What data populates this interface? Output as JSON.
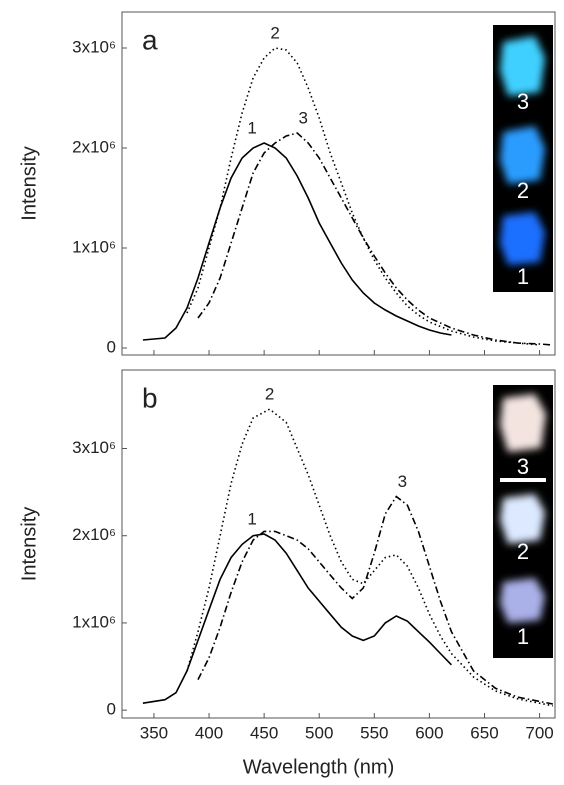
{
  "chart_data": [
    {
      "type": "line",
      "panel_label": "a",
      "ylabel": "Intensity",
      "xlim": [
        321,
        714
      ],
      "xticks": [
        350,
        400,
        450,
        500,
        550,
        600,
        650,
        700
      ],
      "ylim": [
        -70000,
        3360000
      ],
      "yticks": [
        0,
        {
          "value": 1000000,
          "label": "1x10⁶"
        },
        {
          "value": 2000000,
          "label": "2x10⁶"
        },
        {
          "value": 3000000,
          "label": "3x10⁶"
        }
      ],
      "inset_labels": [
        "3",
        "2",
        "1"
      ],
      "series": [
        {
          "name": "1",
          "color": "#000000",
          "style": "solid",
          "x": [
            340,
            360,
            370,
            380,
            390,
            400,
            410,
            420,
            430,
            440,
            450,
            460,
            470,
            480,
            490,
            500,
            510,
            520,
            530,
            540,
            550,
            560,
            570,
            580,
            590,
            600,
            610,
            620
          ],
          "values": [
            80000,
            100000,
            200000,
            400000,
            700000,
            1050000,
            1400000,
            1700000,
            1900000,
            2000000,
            2050000,
            2000000,
            1900000,
            1720000,
            1500000,
            1250000,
            1050000,
            850000,
            680000,
            550000,
            450000,
            380000,
            320000,
            270000,
            220000,
            180000,
            150000,
            130000
          ]
        },
        {
          "name": "2",
          "color": "#000000",
          "style": "dotted",
          "x": [
            380,
            390,
            400,
            410,
            420,
            430,
            440,
            450,
            460,
            470,
            480,
            490,
            500,
            510,
            520,
            530,
            540,
            550,
            560,
            570,
            580,
            590,
            600,
            620,
            640,
            660,
            680,
            700
          ],
          "values": [
            350000,
            600000,
            1000000,
            1400000,
            1900000,
            2350000,
            2700000,
            2900000,
            3000000,
            2980000,
            2850000,
            2600000,
            2300000,
            1950000,
            1650000,
            1350000,
            1100000,
            880000,
            700000,
            550000,
            420000,
            330000,
            260000,
            170000,
            110000,
            70000,
            50000,
            30000
          ]
        },
        {
          "name": "3",
          "color": "#000000",
          "style": "dashdot",
          "x": [
            390,
            400,
            410,
            420,
            430,
            440,
            450,
            460,
            470,
            480,
            490,
            500,
            510,
            520,
            530,
            540,
            550,
            560,
            570,
            580,
            590,
            600,
            620,
            640,
            660,
            680,
            700,
            712
          ],
          "values": [
            300000,
            450000,
            700000,
            1050000,
            1400000,
            1750000,
            1950000,
            2050000,
            2120000,
            2150000,
            2050000,
            1900000,
            1700000,
            1500000,
            1300000,
            1100000,
            920000,
            750000,
            600000,
            480000,
            380000,
            300000,
            200000,
            130000,
            80000,
            50000,
            40000,
            30000
          ]
        }
      ]
    },
    {
      "type": "line",
      "panel_label": "b",
      "xlabel": "Wavelength (nm)",
      "ylabel": "Intensity",
      "xlim": [
        321,
        714
      ],
      "xticks": [
        350,
        400,
        450,
        500,
        550,
        600,
        650,
        700
      ],
      "ylim": [
        -90000,
        3900000
      ],
      "yticks": [
        0,
        {
          "value": 1000000,
          "label": "1x10⁶"
        },
        {
          "value": 2000000,
          "label": "2x10⁶"
        },
        {
          "value": 3000000,
          "label": "3x10⁶"
        }
      ],
      "inset_labels": [
        "3",
        "2",
        "1"
      ],
      "series": [
        {
          "name": "1",
          "color": "#000000",
          "style": "solid",
          "x": [
            340,
            360,
            370,
            380,
            390,
            400,
            410,
            420,
            430,
            440,
            450,
            460,
            470,
            480,
            490,
            500,
            510,
            520,
            530,
            540,
            550,
            560,
            570,
            580,
            590,
            600,
            610,
            620
          ],
          "values": [
            80000,
            120000,
            200000,
            450000,
            800000,
            1150000,
            1500000,
            1750000,
            1900000,
            2000000,
            2020000,
            1950000,
            1800000,
            1600000,
            1400000,
            1250000,
            1100000,
            950000,
            850000,
            800000,
            850000,
            1000000,
            1080000,
            1020000,
            900000,
            780000,
            650000,
            520000
          ]
        },
        {
          "name": "2",
          "color": "#000000",
          "style": "dotted",
          "x": [
            380,
            390,
            400,
            410,
            420,
            430,
            440,
            455,
            470,
            480,
            490,
            500,
            510,
            520,
            530,
            540,
            550,
            560,
            570,
            580,
            590,
            600,
            610,
            620,
            640,
            660,
            680,
            700,
            712
          ],
          "values": [
            450000,
            900000,
            1400000,
            2000000,
            2600000,
            3050000,
            3350000,
            3450000,
            3300000,
            3000000,
            2700000,
            2350000,
            2000000,
            1700000,
            1500000,
            1450000,
            1600000,
            1750000,
            1780000,
            1650000,
            1400000,
            1100000,
            850000,
            650000,
            380000,
            220000,
            130000,
            80000,
            50000
          ]
        },
        {
          "name": "3",
          "color": "#000000",
          "style": "dashdot",
          "x": [
            390,
            400,
            410,
            420,
            430,
            440,
            450,
            460,
            470,
            480,
            490,
            500,
            510,
            520,
            530,
            540,
            550,
            560,
            570,
            580,
            590,
            600,
            610,
            620,
            640,
            660,
            680,
            700,
            712
          ],
          "values": [
            350000,
            600000,
            950000,
            1350000,
            1700000,
            1950000,
            2050000,
            2050000,
            2000000,
            1950000,
            1850000,
            1700000,
            1550000,
            1400000,
            1280000,
            1400000,
            1800000,
            2250000,
            2450000,
            2350000,
            2050000,
            1650000,
            1250000,
            900000,
            450000,
            250000,
            150000,
            100000,
            70000
          ]
        }
      ]
    }
  ]
}
